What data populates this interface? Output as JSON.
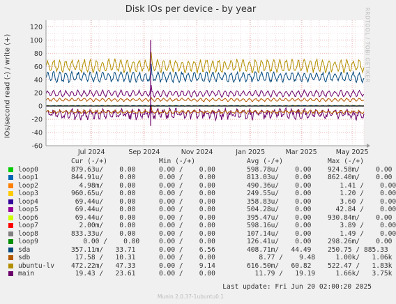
{
  "title": "Disk IOs per device - by year",
  "brand": "RRDTOOL / TOBI OETIKER",
  "footer": "Munin 2.0.37-1ubuntu0.1",
  "last_update": "Last update: Fri Jun 20 02:00:20 2025",
  "legend_headers": {
    "cur": "Cur (-/+)",
    "min": "Min (-/+)",
    "avg": "Avg (-/+)",
    "max": "Max (-/+)"
  },
  "legend": [
    {
      "name": "loop0",
      "color": "#00cc00",
      "cur": "879.63u/    0.00",
      "min": "0.00 /    0.00",
      "avg": "598.78u/    0.00",
      "max": "924.58m/    0.00"
    },
    {
      "name": "loop1",
      "color": "#0066b3",
      "cur": "844.91u/    0.00",
      "min": "0.00 /    0.00",
      "avg": "813.03u/    0.00",
      "max": "862.40m/    0.00"
    },
    {
      "name": "loop2",
      "color": "#ff8000",
      "cur": "  4.98m/    0.00",
      "min": "0.00 /    0.00",
      "avg": "490.36u/    0.00",
      "max": "   1.41 /    0.00"
    },
    {
      "name": "loop3",
      "color": "#ffcc00",
      "cur": "960.65u/    0.00",
      "min": "0.00 /    0.00",
      "avg": "249.55u/    0.00",
      "max": "   1.20 /    0.00"
    },
    {
      "name": "loop4",
      "color": "#330099",
      "cur": " 69.44u/    0.00",
      "min": "0.00 /    0.00",
      "avg": "358.83u/    0.00",
      "max": "   3.60 /    0.00"
    },
    {
      "name": "loop5",
      "color": "#990099",
      "cur": " 69.44u/    0.00",
      "min": "0.00 /    0.00",
      "avg": "504.28u/    0.00",
      "max": "  42.84 /    0.00"
    },
    {
      "name": "loop6",
      "color": "#ccff00",
      "cur": " 69.44u/    0.00",
      "min": "0.00 /    0.00",
      "avg": "395.47u/    0.00",
      "max": "930.84m/    0.00"
    },
    {
      "name": "loop7",
      "color": "#ff0000",
      "cur": "  2.00m/    0.00",
      "min": "0.00 /    0.00",
      "avg": "598.16u/    0.00",
      "max": "   3.89 /    0.00"
    },
    {
      "name": "loop8",
      "color": "#808080",
      "cur": "833.33u/    0.00",
      "min": "0.00 /    0.00",
      "avg": "107.14u/    0.00",
      "max": "   1.49 /    0.00"
    },
    {
      "name": "loop9",
      "color": "#008f00",
      "cur": "   0.00 /    0.00",
      "min": "0.00 /    0.00",
      "avg": "126.41u/    0.00",
      "max": "298.26m/    0.00"
    },
    {
      "name": "sda",
      "color": "#00487d",
      "cur": "357.11m/   33.71",
      "min": "0.00 /    6.56",
      "avg": "408.71m/   44.49",
      "max": "250.75 / 885.33"
    },
    {
      "name": "sdb",
      "color": "#b35a00",
      "cur": " 17.58 /   10.31",
      "min": "0.00 /    0.00",
      "avg": "   8.77 /    9.48",
      "max": "  1.00k/   1.06k"
    },
    {
      "name": "ubuntu-lv",
      "color": "#b38f00",
      "cur": "472.22m/   47.33",
      "min": "0.00 /    9.14",
      "avg": "616.50m/   60.82",
      "max": "522.47 /   1.83k"
    },
    {
      "name": "main",
      "color": "#6b006b",
      "cur": " 19.43 /   23.61",
      "min": "0.00 /    0.00",
      "avg": "  11.79 /   19.19",
      "max": "  1.66k/   3.75k"
    }
  ],
  "chart_data": {
    "type": "line",
    "ylabel": "IOs/second read (-) / write (+)",
    "ylim": [
      -60,
      130
    ],
    "yticks": [
      -60,
      -40,
      -20,
      0,
      20,
      40,
      60,
      80,
      100,
      120
    ],
    "xticks": [
      {
        "label": "Jul 2024",
        "t": 0.143
      },
      {
        "label": "Sep 2024",
        "t": 0.309
      },
      {
        "label": "Nov 2024",
        "t": 0.475
      },
      {
        "label": "Jan 2025",
        "t": 0.643
      },
      {
        "label": "Mar 2025",
        "t": 0.803
      },
      {
        "label": "May 2025",
        "t": 0.963
      }
    ],
    "grid": true,
    "series": [
      {
        "name": "ubuntu-lv",
        "color": "#b38f00",
        "write_level": 61,
        "write_amp": 10,
        "read_level": 0.6,
        "read_amp": 0.5
      },
      {
        "name": "sda",
        "color": "#00487d",
        "write_level": 44,
        "write_amp": 8,
        "read_level": 0.4,
        "read_amp": 0.4
      },
      {
        "name": "main",
        "color": "#6b006b",
        "write_level": 19,
        "write_amp": 5,
        "read_level": -12,
        "read_amp": 8
      },
      {
        "name": "sdb",
        "color": "#b35a00",
        "write_level": 9.5,
        "write_amp": 2.5,
        "read_level": -8.8,
        "read_amp": 2.5
      }
    ]
  }
}
